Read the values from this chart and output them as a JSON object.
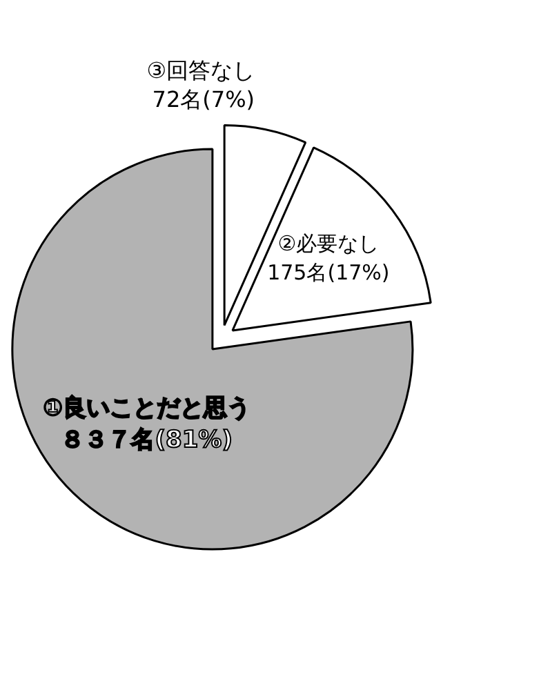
{
  "chart_data": {
    "type": "pie",
    "categories": [
      "①良いことだと思う",
      "②必要なし",
      "③回答なし"
    ],
    "values": [
      837,
      175,
      72
    ],
    "value_labels": [
      "８３７名(81%)",
      "175名(17%)",
      "72名(7%)"
    ],
    "colors": [
      "#b3b3b3",
      "#ffffff",
      "#ffffff"
    ]
  }
}
